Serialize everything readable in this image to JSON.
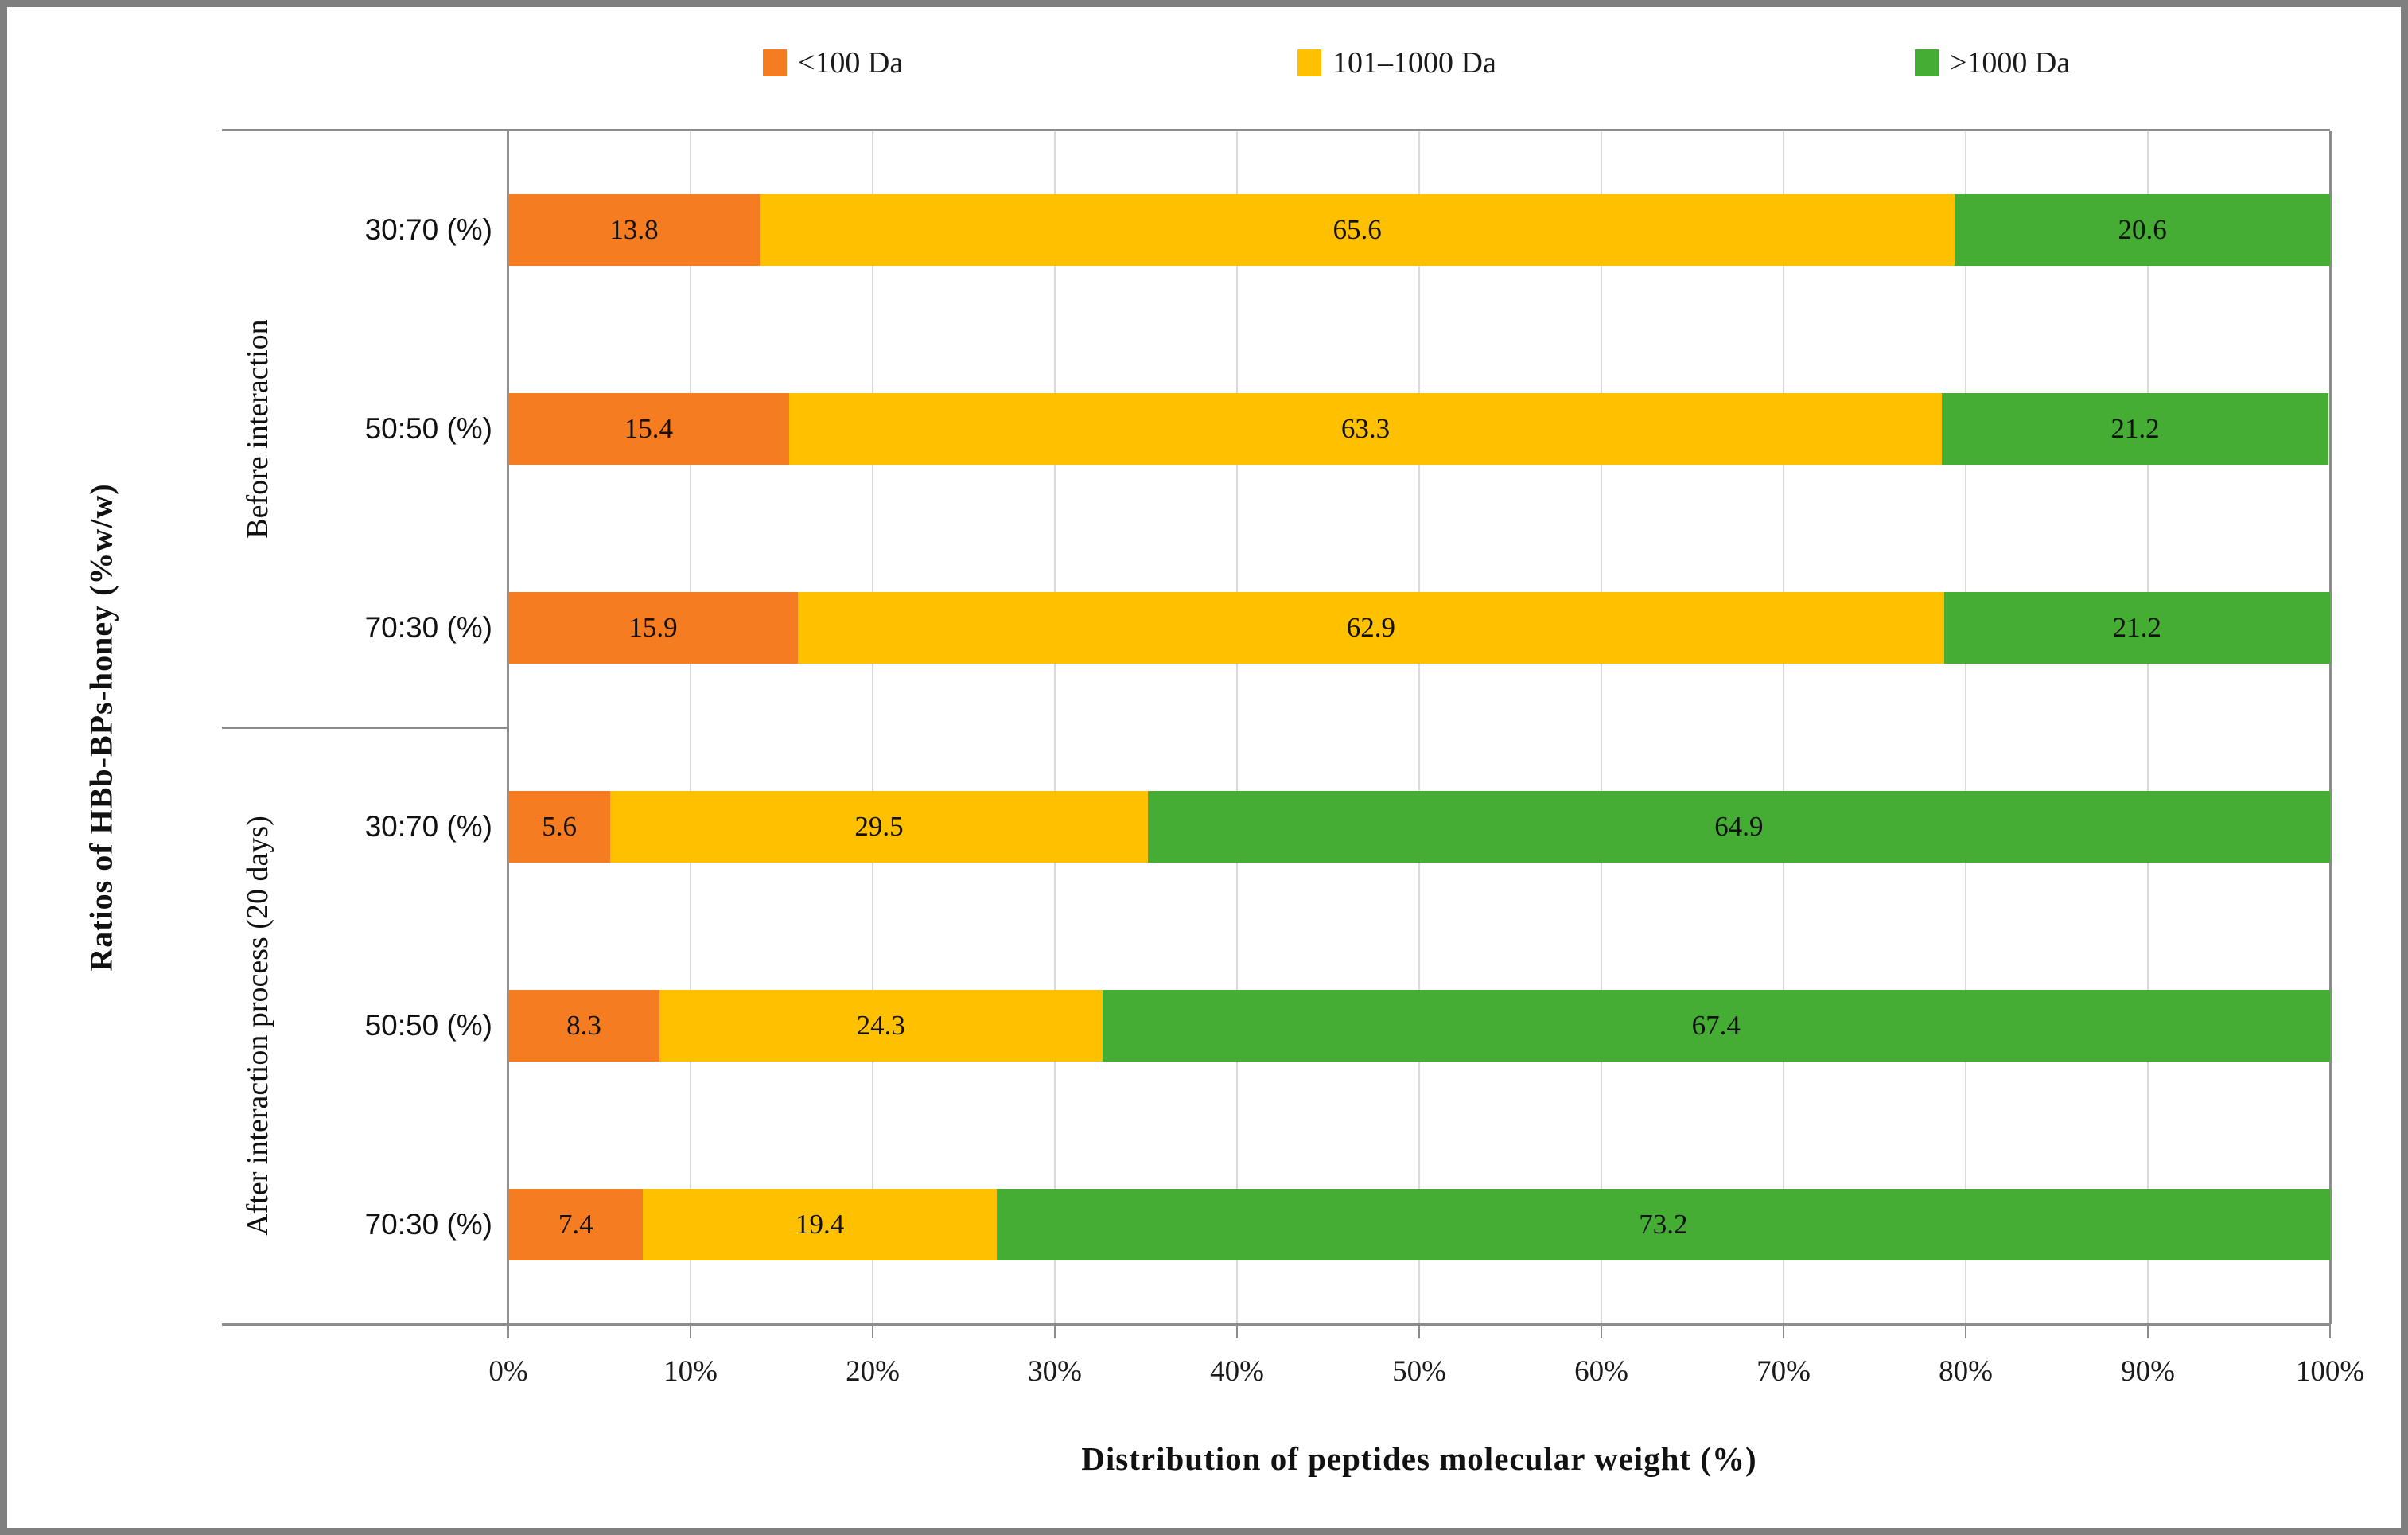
{
  "chart_data": {
    "type": "bar",
    "orientation": "horizontal",
    "stacked": true,
    "xlabel": "Distribution of peptides molecular weight (%)",
    "ylabel": "Ratios of HBb-BPs-honey (%w/w)",
    "xlim": [
      0,
      100
    ],
    "x_ticks": [
      "0%",
      "10%",
      "20%",
      "30%",
      "40%",
      "50%",
      "60%",
      "70%",
      "80%",
      "90%",
      "100%"
    ],
    "grid": true,
    "legend_position": "top",
    "groups": [
      {
        "label": "Before interaction",
        "categories": [
          "30:70 (%)",
          "50:50 (%)",
          "70:30 (%)"
        ]
      },
      {
        "label": "After interaction process (20 days)",
        "categories": [
          "30:70 (%)",
          "50:50 (%)",
          "70:30 (%)"
        ]
      }
    ],
    "series": [
      {
        "name": "<100 Da",
        "color": "#F57C21",
        "values": [
          13.8,
          15.4,
          15.9,
          5.6,
          8.3,
          7.4
        ]
      },
      {
        "name": "101–1000 Da",
        "color": "#FFC000",
        "values": [
          65.6,
          63.3,
          62.9,
          29.5,
          24.3,
          19.4
        ]
      },
      {
        "name": ">1000 Da",
        "color": "#45AC34",
        "values": [
          20.6,
          21.2,
          21.2,
          64.9,
          67.4,
          73.2
        ]
      }
    ],
    "colors": {
      "gridline": "#d9d9d9",
      "axis": "#8c8c8c",
      "frame_border": "#7f7f7f"
    }
  }
}
